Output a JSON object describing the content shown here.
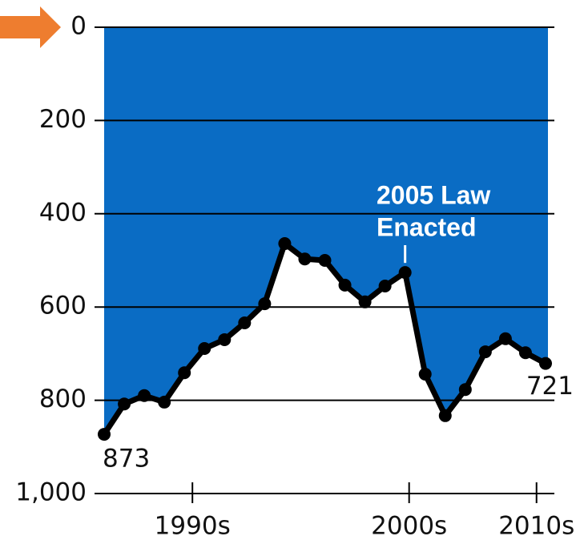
{
  "chart_data": {
    "type": "line",
    "values": [
      873,
      808,
      790,
      804,
      741,
      689,
      670,
      634,
      593,
      464,
      497,
      500,
      553,
      589,
      555,
      526,
      744,
      833,
      777,
      696,
      668,
      698,
      721
    ],
    "color": "#000000",
    "fill_color": "#0a6cc4",
    "ylim": [
      0,
      1000
    ],
    "inverted": true,
    "yticks": [
      0,
      200,
      400,
      600,
      800,
      {
        "value": 1000,
        "label": "1,000"
      }
    ],
    "xlim": [
      0,
      22
    ],
    "xticks": [
      {
        "value": 4.4,
        "label": "1990s"
      },
      {
        "value": 15.2,
        "label": "2000s"
      },
      {
        "value": 21.55,
        "label": "2010s"
      }
    ],
    "grid": true,
    "annotation": {
      "text_lines": [
        "2005 Law",
        "Enacted"
      ],
      "index": 15
    }
  }
}
